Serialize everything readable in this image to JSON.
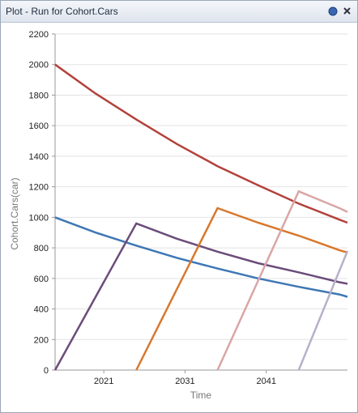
{
  "window_title": "Plot - Run for Cohort.Cars",
  "chart_data": {
    "type": "line",
    "x_label": "Time",
    "y_label": "Cohort.Cars(car)",
    "x": [
      2015,
      2020,
      2025,
      2030,
      2035,
      2040,
      2045,
      2050,
      2051
    ],
    "series": [
      {
        "color": "#b3413b",
        "values": [
          2000,
          1810,
          1640,
          1480,
          1335,
          1210,
          1090,
          985,
          965
        ]
      },
      {
        "color": "#3e77b4",
        "values": [
          1000,
          900,
          815,
          735,
          665,
          600,
          545,
          495,
          480
        ]
      },
      {
        "color": "#6b4c7a",
        "values": [
          0,
          480,
          960,
          860,
          775,
          700,
          640,
          575,
          565
        ]
      },
      {
        "color": "#d9772b",
        "values": [
          null,
          null,
          0,
          530,
          1060,
          965,
          880,
          785,
          770
        ]
      },
      {
        "color": "#d8a6a6",
        "values": [
          null,
          null,
          null,
          null,
          0,
          585,
          1170,
          1060,
          1035
        ]
      },
      {
        "color": "#b8afca",
        "values": [
          null,
          null,
          null,
          null,
          null,
          null,
          0,
          650,
          780
        ]
      }
    ],
    "xlim": [
      2015,
      2051
    ],
    "xticks": [
      2021,
      2031,
      2041
    ],
    "ylim": [
      0,
      2200
    ],
    "yticks": [
      0,
      200,
      400,
      600,
      800,
      1000,
      1200,
      1400,
      1600,
      1800,
      2000,
      2200
    ],
    "grid": true
  }
}
